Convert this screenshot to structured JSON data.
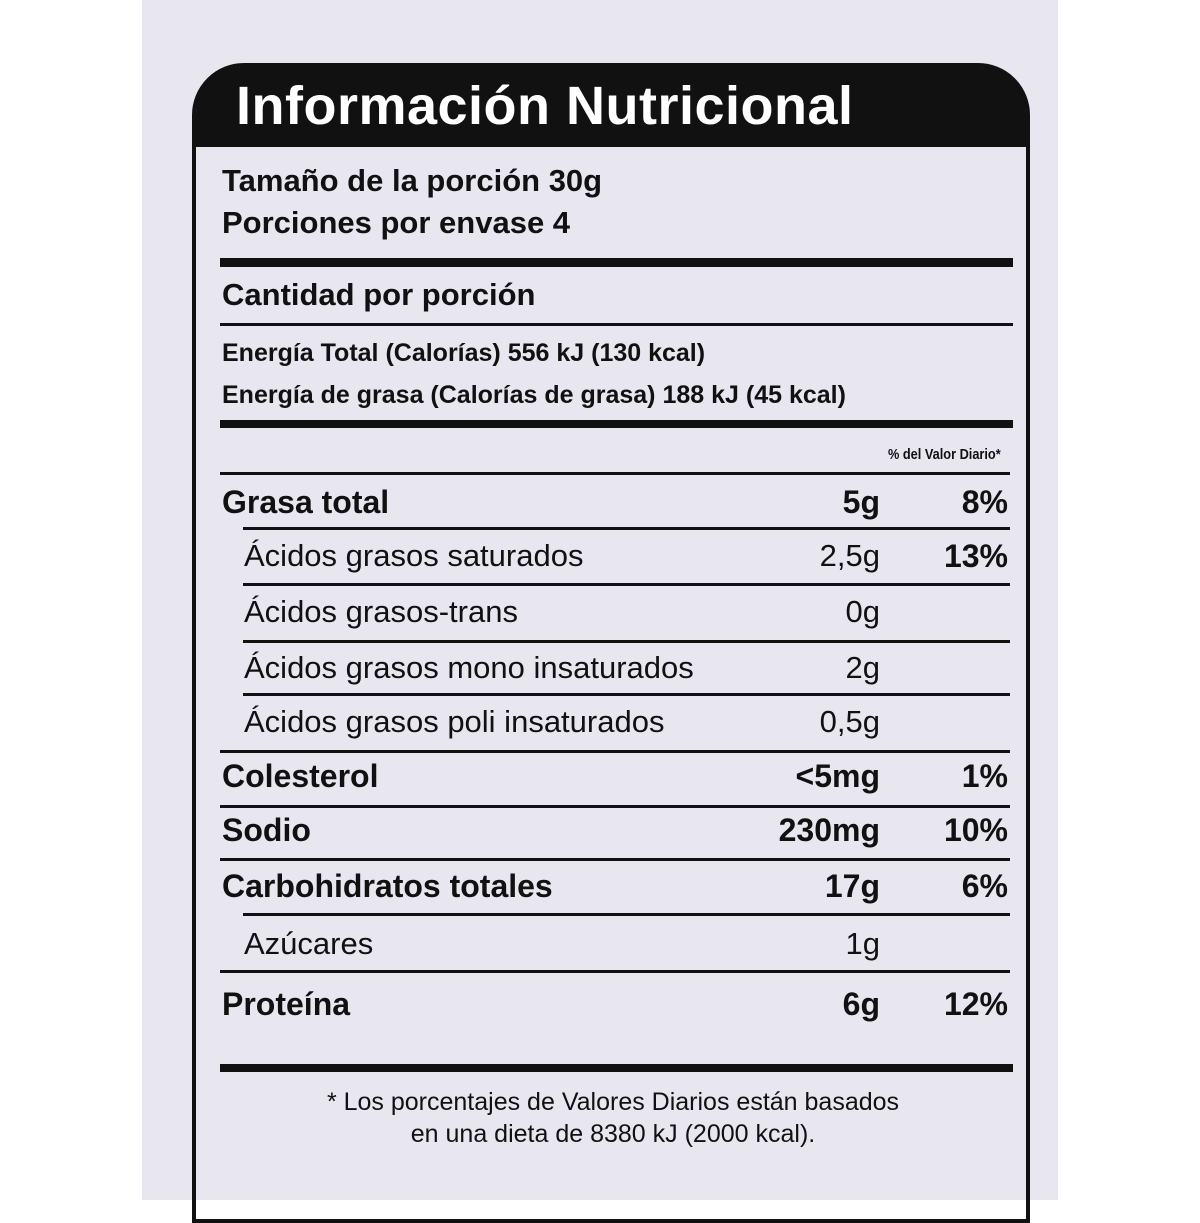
{
  "title": "Información Nutricional",
  "serving_size": "Tamaño de la porción 30g",
  "servings_per_container": "Porciones por envase 4",
  "amount_per_serving": "Cantidad por porción",
  "energy_total": "Energía Total (Calorías) 556 kJ (130 kcal)",
  "energy_fat": "Energía de grasa (Calorías de grasa) 188 kJ (45 kcal)",
  "dv_header": "% del Valor Diario*",
  "nutrients": [
    {
      "name": "Grasa total",
      "amount": "5g",
      "dv": "8%",
      "bold": true
    },
    {
      "name": "Ácidos grasos saturados",
      "amount": "2,5g",
      "dv": "13%",
      "bold": false
    },
    {
      "name": "Ácidos grasos-trans",
      "amount": "0g",
      "dv": "",
      "bold": false
    },
    {
      "name": "Ácidos grasos mono insaturados",
      "amount": "2g",
      "dv": "",
      "bold": false
    },
    {
      "name": "Ácidos grasos poli insaturados",
      "amount": "0,5g",
      "dv": "",
      "bold": false
    },
    {
      "name": "Colesterol",
      "amount": "<5mg",
      "dv": "1%",
      "bold": true
    },
    {
      "name": "Sodio",
      "amount": "230mg",
      "dv": "10%",
      "bold": true
    },
    {
      "name": "Carbohidratos totales",
      "amount": "17g",
      "dv": "6%",
      "bold": true
    },
    {
      "name": "Azúcares",
      "amount": "1g",
      "dv": "",
      "bold": false
    },
    {
      "name": "Proteína",
      "amount": "6g",
      "dv": "12%",
      "bold": true
    }
  ],
  "footnote_line1": "* Los porcentajes de Valores Diarios están basados",
  "footnote_line2": "en una dieta de 8380 kJ (2000 kcal)."
}
